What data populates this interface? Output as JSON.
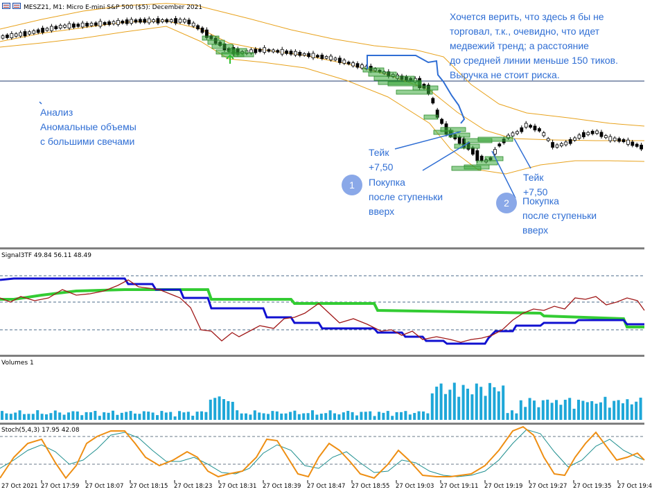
{
  "chart_header": {
    "title": "MESZ21, M1:  Micro E-mini S&P 500 ($5): December 2021"
  },
  "annotations": {
    "note_top": [
      "Хочется верить, что здесь я бы не",
      "торговал, т.к., очевидно, что идет",
      "медвежий тренд; а расстояние",
      "до средней линии меньше 150 тиков.",
      "Выручка не стоит риска."
    ],
    "note_left": [
      "Анализ",
      "Аномальные объемы",
      "с большими свечами"
    ],
    "take1": [
      "Тейк",
      "+7,50"
    ],
    "entry1": {
      "number": "1",
      "lines": [
        "Покупка",
        "после ступеньки",
        "вверх"
      ]
    },
    "take2": [
      "Тейк",
      "+7,50"
    ],
    "entry2": {
      "number": "2",
      "lines": [
        "Покупка",
        "после ступеньки",
        "вверх"
      ]
    }
  },
  "indicator_labels": {
    "signal": "Signal3TF 49.84 56.11 48.49",
    "volumes": "Volumes 1",
    "stoch": "Stoch(5,4,3) 17.95 42.08"
  },
  "time_axis": [
    "27 Oct 2021",
    "27 Oct 17:59",
    "27 Oct 18:07",
    "27 Oct 18:15",
    "27 Oct 18:23",
    "27 Oct 18:31",
    "27 Oct 18:39",
    "27 Oct 18:47",
    "27 Oct 18:55",
    "27 Oct 19:03",
    "27 Oct 19:11",
    "27 Oct 19:19",
    "27 Oct 19:27",
    "27 Oct 19:35",
    "27 Oct 19:4"
  ],
  "colors": {
    "bull_candle": "#ffffff",
    "bear_candle": "#000000",
    "bollinger": "#e8a21c",
    "volume_box": "#2a8a2a",
    "signal_blue": "#1010d0",
    "signal_green": "#33cc33",
    "signal_red": "#a01818",
    "volume_bar": "#1ea7d8",
    "stoch_main": "#ee8e12",
    "stoch_signal": "#1f8f8f",
    "annotation": "#2f6ed4"
  }
}
